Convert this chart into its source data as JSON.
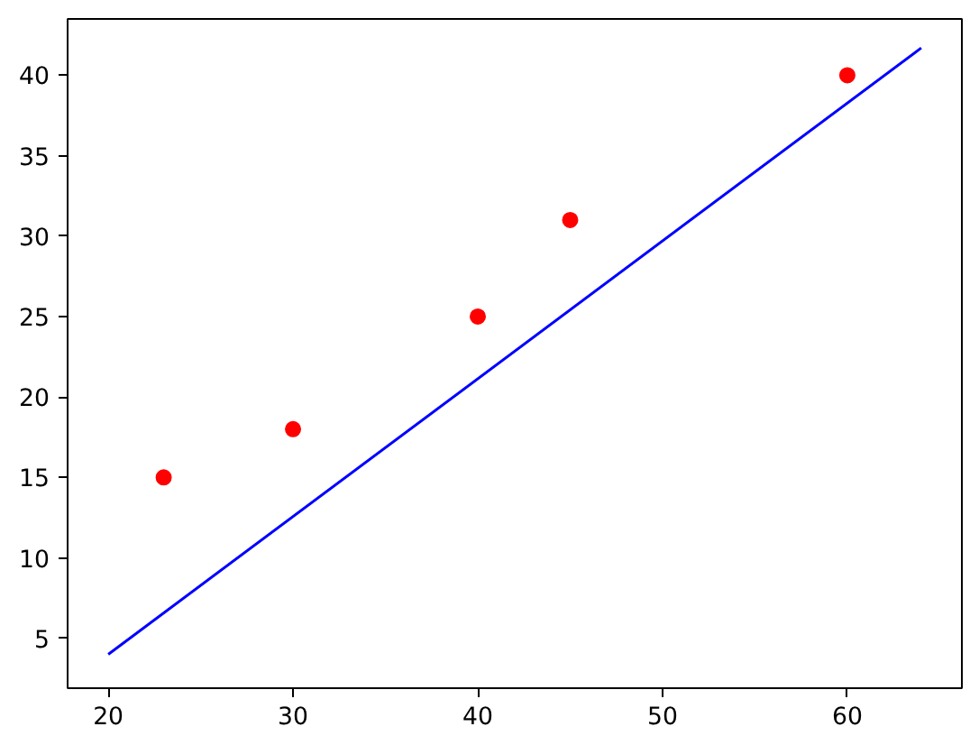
{
  "chart_data": {
    "type": "scatter",
    "xlim": [
      17.8,
      66.2
    ],
    "ylim": [
      1.9,
      43.5
    ],
    "xticks": [
      20,
      30,
      40,
      50,
      60
    ],
    "yticks": [
      5,
      10,
      15,
      20,
      25,
      30,
      35,
      40
    ],
    "grid": false,
    "series": [
      {
        "color": "#ff0000",
        "marker": "circle",
        "x": [
          23,
          30,
          40,
          45,
          60
        ],
        "values": [
          15,
          18,
          25,
          31,
          40
        ]
      },
      {
        "type": "line",
        "color": "#0000ff",
        "marker": "none",
        "line_style": "solid",
        "x": [
          20,
          64
        ],
        "values": [
          4.0,
          41.7
        ]
      }
    ]
  }
}
